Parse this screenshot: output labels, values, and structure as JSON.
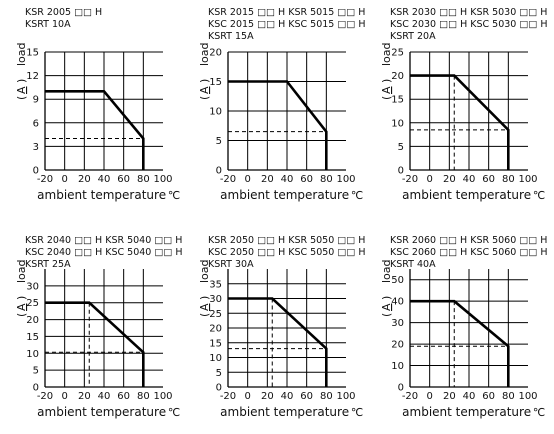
{
  "colors": {
    "line": "#000000",
    "grid": "#000000",
    "text": "#111111"
  },
  "chart_data": [
    {
      "type": "line",
      "header": [
        "KSR 2005 □□ H",
        "KSRT 10A"
      ],
      "xlabel": "ambient temperature",
      "xunit": "℃",
      "ylabel": "load",
      "yunit": "A",
      "xlim": [
        -20,
        100
      ],
      "ylim": [
        0,
        15
      ],
      "xticks": [
        "-20",
        "0",
        "20",
        "40",
        "60",
        "80",
        "100"
      ],
      "yticks": [
        "0",
        "3",
        "6",
        "9",
        "12",
        "15"
      ],
      "grid": true,
      "series": [
        {
          "x": [
            -20,
            40,
            80,
            80
          ],
          "y": [
            10,
            10,
            4,
            0
          ]
        }
      ],
      "guides": {
        "x": null,
        "y": 4
      }
    },
    {
      "type": "line",
      "header": [
        "KSR 2015 □□ H  KSR 5015 □□ H",
        "KSC 2015 □□ H  KSC 5015 □□ H",
        "KSRT 15A"
      ],
      "xlabel": "ambient temperature",
      "xunit": "℃",
      "ylabel": "load",
      "yunit": "A",
      "xlim": [
        -20,
        100
      ],
      "ylim": [
        0,
        20
      ],
      "xticks": [
        "-20",
        "0",
        "20",
        "40",
        "60",
        "80",
        "100"
      ],
      "yticks": [
        "0",
        "5",
        "10",
        "15",
        "20"
      ],
      "grid": true,
      "series": [
        {
          "x": [
            -20,
            40,
            80,
            80
          ],
          "y": [
            15,
            15,
            6.5,
            0
          ]
        }
      ],
      "guides": {
        "x": null,
        "y": 6.5
      }
    },
    {
      "type": "line",
      "header": [
        "KSR 2030 □□ H  KSR 5030 □□ H",
        "KSC 2030 □□ H  KSC 5030 □□ H",
        "KSRT 20A"
      ],
      "xlabel": "ambient temperature",
      "xunit": "℃",
      "ylabel": "load",
      "yunit": "A",
      "xlim": [
        -20,
        100
      ],
      "ylim": [
        0,
        25
      ],
      "xticks": [
        "-20",
        "0",
        "20",
        "40",
        "60",
        "80",
        "100"
      ],
      "yticks": [
        "0",
        "5",
        "10",
        "15",
        "20",
        "25"
      ],
      "grid": true,
      "series": [
        {
          "x": [
            -20,
            25,
            80,
            80
          ],
          "y": [
            20,
            20,
            8.5,
            0
          ]
        }
      ],
      "guides": {
        "x": 25,
        "y": 8.5
      }
    },
    {
      "type": "line",
      "header": [
        "KSR 2040 □□ H  KSR 5040 □□ H",
        "KSC 2040 □□ H  KSC 5040 □□ H",
        "KSRT 25A"
      ],
      "xlabel": "ambient temperature",
      "xunit": "℃",
      "ylabel": "load",
      "yunit": "A",
      "xlim": [
        -20,
        100
      ],
      "ylim": [
        0,
        35
      ],
      "xticks": [
        "-20",
        "0",
        "20",
        "40",
        "60",
        "80",
        "100"
      ],
      "yticks": [
        "0",
        "5",
        "10",
        "15",
        "20",
        "25",
        "30"
      ],
      "grid": true,
      "series": [
        {
          "x": [
            -20,
            25,
            80,
            80
          ],
          "y": [
            25,
            25,
            10.3,
            0
          ]
        }
      ],
      "guides": {
        "x": 25,
        "y": 10.3
      }
    },
    {
      "type": "line",
      "header": [
        "KSR 2050 □□ H  KSR 5050 □□ H",
        "KSC 2050 □□ H  KSC 5050 □□ H",
        "KSRT 30A"
      ],
      "xlabel": "ambient temperature",
      "xunit": "℃",
      "ylabel": "load",
      "yunit": "A",
      "xlim": [
        -20,
        100
      ],
      "ylim": [
        0,
        40
      ],
      "xticks": [
        "-20",
        "0",
        "20",
        "40",
        "60",
        "80",
        "100"
      ],
      "yticks": [
        "0",
        "5",
        "10",
        "15",
        "20",
        "25",
        "30",
        "35"
      ],
      "grid": true,
      "series": [
        {
          "x": [
            -20,
            25,
            80,
            80
          ],
          "y": [
            30,
            30,
            13,
            0
          ]
        }
      ],
      "guides": {
        "x": 25,
        "y": 13
      }
    },
    {
      "type": "line",
      "header": [
        "KSR 2060 □□ H  KSR 5060 □□ H",
        "KSC 2060 □□ H  KSC 5060 □□ H",
        "KSRT 40A"
      ],
      "xlabel": "ambient temperature",
      "xunit": "℃",
      "ylabel": "load",
      "yunit": "A",
      "xlim": [
        -20,
        100
      ],
      "ylim": [
        0,
        55
      ],
      "xticks": [
        "-20",
        "0",
        "20",
        "40",
        "60",
        "80",
        "100"
      ],
      "yticks": [
        "0",
        "10",
        "20",
        "30",
        "40",
        "50"
      ],
      "grid": true,
      "series": [
        {
          "x": [
            -20,
            25,
            80,
            80
          ],
          "y": [
            40,
            40,
            19,
            0
          ]
        }
      ],
      "guides": {
        "x": 25,
        "y": 19
      }
    }
  ]
}
